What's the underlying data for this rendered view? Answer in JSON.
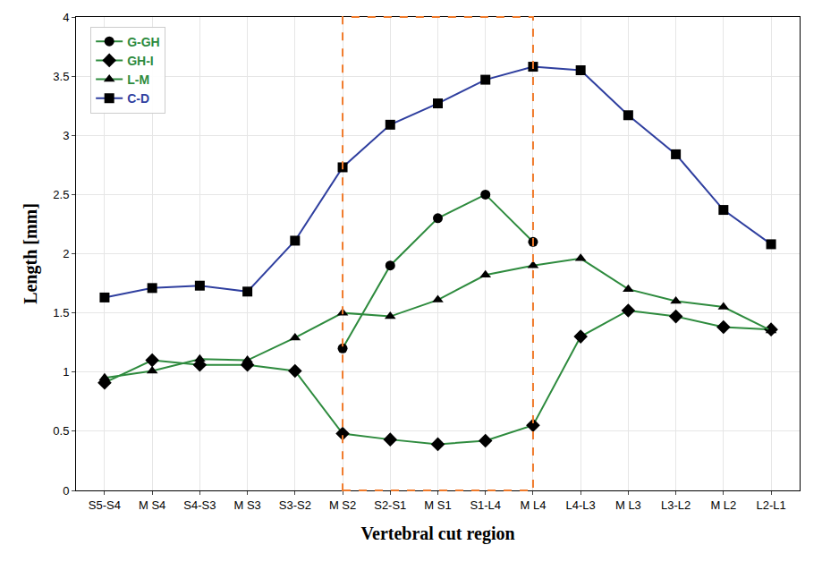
{
  "chart_data": {
    "type": "line",
    "x_label": "Vertebral cut region",
    "y_label": "Length [mm]",
    "categories": [
      "S5-S4",
      "M S4",
      "S4-S3",
      "M S3",
      "S3-S2",
      "M S2",
      "S2-S1",
      "M S1",
      "S1-L4",
      "M L4",
      "L4-L3",
      "M L3",
      "L3-L2",
      "M L2",
      "L2-L1"
    ],
    "series": [
      {
        "name": "G-GH",
        "color": "#2e8b3e",
        "marker": "circle",
        "line_style": "solid",
        "values": [
          null,
          null,
          null,
          null,
          null,
          1.2,
          1.9,
          2.3,
          2.5,
          2.1,
          null,
          null,
          null,
          null,
          null
        ]
      },
      {
        "name": "GH-I",
        "color": "#2e8b3e",
        "marker": "diamond",
        "line_style": "solid",
        "values": [
          0.91,
          1.1,
          1.06,
          1.06,
          1.01,
          0.48,
          0.43,
          0.39,
          0.42,
          0.55,
          1.3,
          1.52,
          1.47,
          1.38,
          1.36
        ]
      },
      {
        "name": "L-M",
        "color": "#2e8b3e",
        "marker": "triangle-up",
        "line_style": "solid",
        "values": [
          0.95,
          1.01,
          1.11,
          1.1,
          1.29,
          1.5,
          1.47,
          1.61,
          1.82,
          1.9,
          1.96,
          1.7,
          1.6,
          1.55,
          1.35
        ]
      },
      {
        "name": "C-D",
        "color": "#2f3f9f",
        "marker": "square",
        "line_style": "solid",
        "values": [
          1.63,
          1.71,
          1.73,
          1.68,
          2.11,
          2.73,
          3.09,
          3.27,
          3.47,
          3.58,
          3.55,
          3.17,
          2.84,
          2.37,
          2.08
        ]
      }
    ],
    "ylim": [
      0,
      4
    ],
    "yticks": [
      0,
      0.5,
      1,
      1.5,
      2,
      2.5,
      3,
      3.5,
      4
    ],
    "grid": true,
    "legend": "upper left"
  }
}
